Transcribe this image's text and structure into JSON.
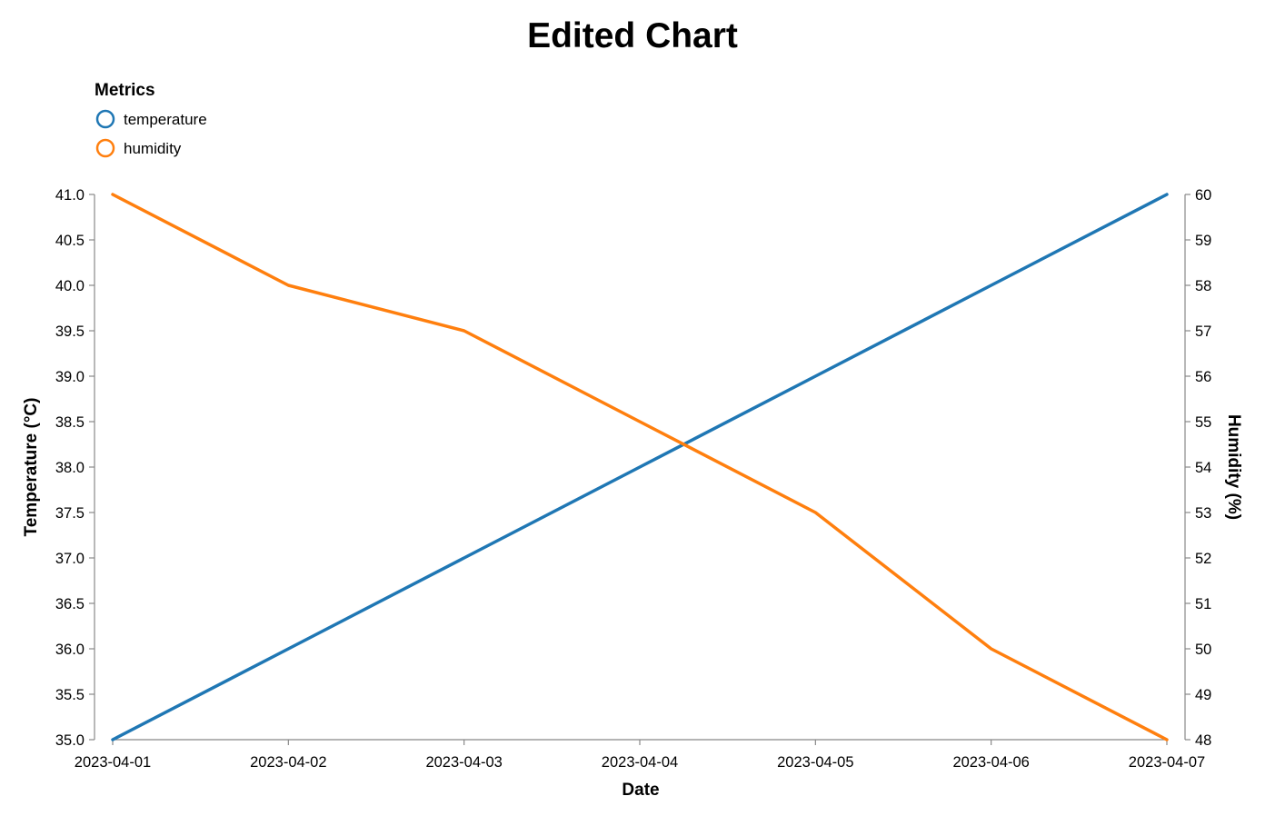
{
  "chart_data": {
    "type": "line",
    "title": "Edited Chart",
    "xlabel": "Date",
    "ylabel_left": "Temperature (°C)",
    "ylabel_right": "Humidity (%)",
    "x": [
      "2023-04-01",
      "2023-04-02",
      "2023-04-03",
      "2023-04-04",
      "2023-04-05",
      "2023-04-06",
      "2023-04-07"
    ],
    "x_ticks": [
      "2023-04-01",
      "2023-04-02",
      "2023-04-03",
      "2023-04-04",
      "2023-04-05",
      "2023-04-06",
      "2023-04-07"
    ],
    "ylim_left": [
      35.0,
      41.0
    ],
    "ylim_right": [
      48,
      60
    ],
    "y_ticks_left": [
      "35.0",
      "35.5",
      "36.0",
      "36.5",
      "37.0",
      "37.5",
      "38.0",
      "38.5",
      "39.0",
      "39.5",
      "40.0",
      "40.5",
      "41.0"
    ],
    "y_ticks_right": [
      "48",
      "49",
      "50",
      "51",
      "52",
      "53",
      "54",
      "55",
      "56",
      "57",
      "58",
      "59",
      "60"
    ],
    "legend": {
      "title": "Metrics",
      "position": "top-left"
    },
    "grid": false,
    "series": [
      {
        "name": "temperature",
        "axis": "left",
        "color": "#1f77b4",
        "values": [
          35.0,
          36.0,
          37.0,
          38.0,
          39.0,
          40.0,
          41.0
        ]
      },
      {
        "name": "humidity",
        "axis": "right",
        "color": "#ff7f0e",
        "values": [
          60,
          58,
          57,
          55,
          53,
          50,
          48
        ]
      }
    ]
  }
}
